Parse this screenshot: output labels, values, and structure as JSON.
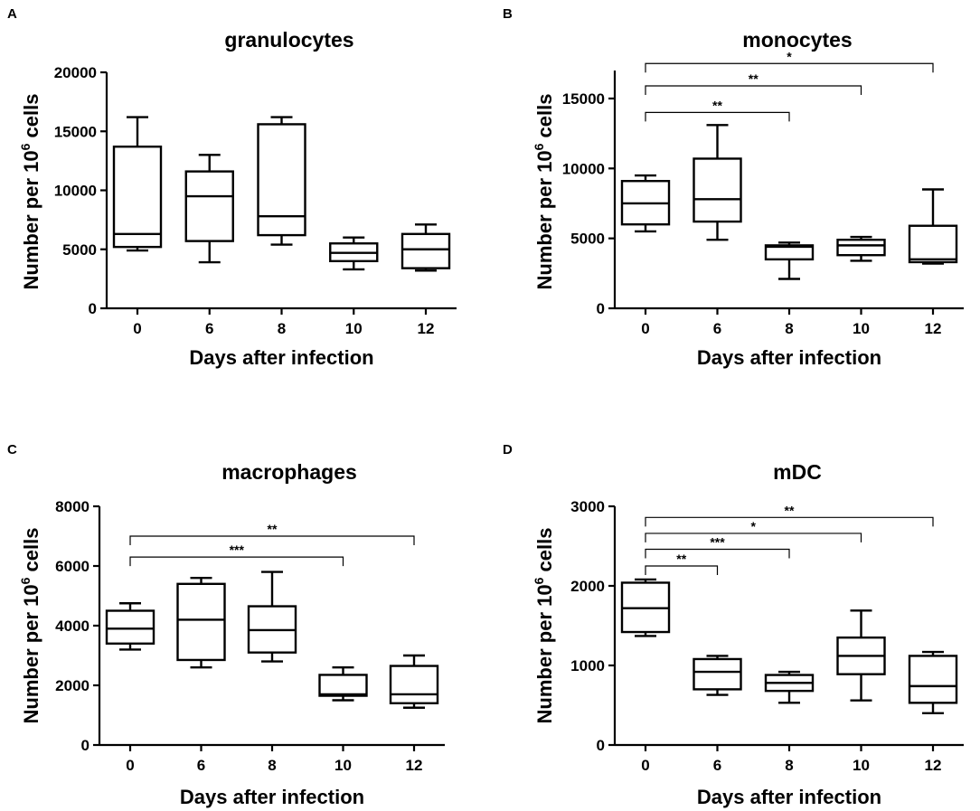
{
  "figure": {
    "panels": [
      {
        "letter": "A",
        "title": "granulocytes",
        "ylabel_main": "Number per 10",
        "ylabel_sup": "6",
        "ylabel_tail": " cells",
        "xlabel": "Days after infection"
      },
      {
        "letter": "B",
        "title": "monocytes",
        "ylabel_main": "Number per 10",
        "ylabel_sup": "6",
        "ylabel_tail": " cells",
        "xlabel": "Days after infection"
      },
      {
        "letter": "C",
        "title": "macrophages",
        "ylabel_main": "Number per 10",
        "ylabel_sup": "6",
        "ylabel_tail": " cells",
        "xlabel": "Days after infection"
      },
      {
        "letter": "D",
        "title": "mDC",
        "ylabel_main": "Number per 10",
        "ylabel_sup": "6",
        "ylabel_tail": " cells",
        "xlabel": "Days after infection"
      }
    ]
  },
  "chart_data": [
    {
      "type": "box",
      "title": "granulocytes",
      "xlabel": "Days after infection",
      "ylabel": "Number per 10^6 cells",
      "categories": [
        "0",
        "6",
        "8",
        "10",
        "12"
      ],
      "ylim": [
        0,
        20000
      ],
      "yticks": [
        "0",
        "5000",
        "10000",
        "15000",
        "20000"
      ],
      "boxes": [
        {
          "min": 4900,
          "q1": 5200,
          "median": 6300,
          "q3": 13700,
          "max": 16200
        },
        {
          "min": 3900,
          "q1": 5700,
          "median": 9500,
          "q3": 11600,
          "max": 13000
        },
        {
          "min": 5400,
          "q1": 6200,
          "median": 7800,
          "q3": 15600,
          "max": 16200
        },
        {
          "min": 3300,
          "q1": 4000,
          "median": 4700,
          "q3": 5500,
          "max": 6000
        },
        {
          "min": 3200,
          "q1": 3400,
          "median": 5000,
          "q3": 6300,
          "max": 7100
        }
      ],
      "significance": []
    },
    {
      "type": "box",
      "title": "monocytes",
      "xlabel": "Days after infection",
      "ylabel": "Number per 10^6 cells",
      "categories": [
        "0",
        "6",
        "8",
        "10",
        "12"
      ],
      "ylim": [
        0,
        17000
      ],
      "yticks": [
        "0",
        "5000",
        "10000",
        "15000"
      ],
      "boxes": [
        {
          "min": 5500,
          "q1": 6000,
          "median": 7500,
          "q3": 9100,
          "max": 9500
        },
        {
          "min": 4900,
          "q1": 6200,
          "median": 7800,
          "q3": 10700,
          "max": 13100
        },
        {
          "min": 2100,
          "q1": 3500,
          "median": 4400,
          "q3": 4500,
          "max": 4700
        },
        {
          "min": 3400,
          "q1": 3800,
          "median": 4500,
          "q3": 4900,
          "max": 5100
        },
        {
          "min": 3200,
          "q1": 3300,
          "median": 3500,
          "q3": 5900,
          "max": 8500
        }
      ],
      "significance": [
        {
          "from": "0",
          "to": "8",
          "label": "**",
          "y": 14000
        },
        {
          "from": "0",
          "to": "10",
          "label": "**",
          "y": 15900
        },
        {
          "from": "0",
          "to": "12",
          "label": "*",
          "y": 17500
        }
      ]
    },
    {
      "type": "box",
      "title": "macrophages",
      "xlabel": "Days after infection",
      "ylabel": "Number per 10^6 cells",
      "categories": [
        "0",
        "6",
        "8",
        "10",
        "12"
      ],
      "ylim": [
        0,
        8000
      ],
      "yticks": [
        "0",
        "2000",
        "4000",
        "6000",
        "8000"
      ],
      "boxes": [
        {
          "min": 3200,
          "q1": 3400,
          "median": 3900,
          "q3": 4500,
          "max": 4750
        },
        {
          "min": 2600,
          "q1": 2850,
          "median": 4200,
          "q3": 5400,
          "max": 5600
        },
        {
          "min": 2800,
          "q1": 3100,
          "median": 3850,
          "q3": 4650,
          "max": 5800
        },
        {
          "min": 1500,
          "q1": 1650,
          "median": 1700,
          "q3": 2350,
          "max": 2600
        },
        {
          "min": 1250,
          "q1": 1400,
          "median": 1700,
          "q3": 2650,
          "max": 3000
        }
      ],
      "significance": [
        {
          "from": "0",
          "to": "10",
          "label": "***",
          "y": 6300
        },
        {
          "from": "0",
          "to": "12",
          "label": "**",
          "y": 7000
        }
      ]
    },
    {
      "type": "box",
      "title": "mDC",
      "xlabel": "Days after infection",
      "ylabel": "Number per 10^6 cells",
      "categories": [
        "0",
        "6",
        "8",
        "10",
        "12"
      ],
      "ylim": [
        0,
        3000
      ],
      "yticks": [
        "0",
        "1000",
        "2000",
        "3000"
      ],
      "boxes": [
        {
          "min": 1370,
          "q1": 1420,
          "median": 1720,
          "q3": 2040,
          "max": 2080
        },
        {
          "min": 630,
          "q1": 700,
          "median": 920,
          "q3": 1080,
          "max": 1120
        },
        {
          "min": 530,
          "q1": 680,
          "median": 780,
          "q3": 880,
          "max": 920
        },
        {
          "min": 560,
          "q1": 890,
          "median": 1120,
          "q3": 1350,
          "max": 1690
        },
        {
          "min": 400,
          "q1": 530,
          "median": 740,
          "q3": 1120,
          "max": 1170
        }
      ],
      "significance": [
        {
          "from": "0",
          "to": "6",
          "label": "**",
          "y": 2250
        },
        {
          "from": "0",
          "to": "8",
          "label": "***",
          "y": 2460
        },
        {
          "from": "0",
          "to": "10",
          "label": "*",
          "y": 2660
        },
        {
          "from": "0",
          "to": "12",
          "label": "**",
          "y": 2860
        }
      ]
    }
  ]
}
